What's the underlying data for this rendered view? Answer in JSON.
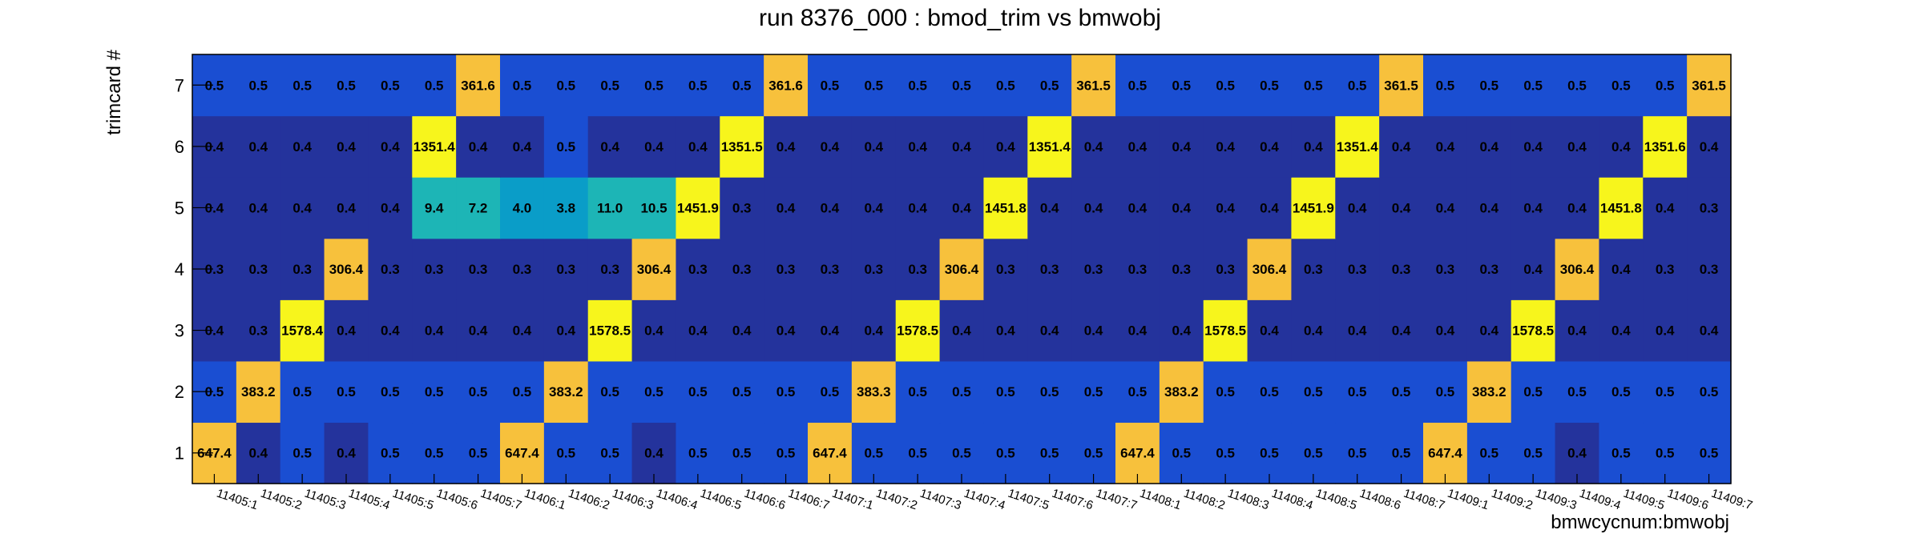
{
  "chart_data": {
    "type": "heatmap",
    "title": "run 8376_000 : bmod_trim vs bmwobj",
    "xlabel": "bmwcycnum:bmwobj",
    "ylabel": "trimcard #",
    "x_categories": [
      "11405:1",
      "11405:2",
      "11405:3",
      "11405:4",
      "11405:5",
      "11405:6",
      "11405:7",
      "11406:1",
      "11406:2",
      "11406:3",
      "11406:4",
      "11406:5",
      "11406:6",
      "11406:7",
      "11407:1",
      "11407:2",
      "11407:3",
      "11407:4",
      "11407:5",
      "11407:6",
      "11407:7",
      "11408:1",
      "11408:2",
      "11408:3",
      "11408:4",
      "11408:5",
      "11408:6",
      "11408:7",
      "11409:1",
      "11409:2",
      "11409:3",
      "11409:4",
      "11409:5",
      "11409:6",
      "11409:7"
    ],
    "y_categories": [
      "1",
      "2",
      "3",
      "4",
      "5",
      "6",
      "7"
    ],
    "values": [
      [
        647.4,
        0.4,
        0.5,
        0.4,
        0.5,
        0.5,
        0.5,
        647.4,
        0.5,
        0.5,
        0.4,
        0.5,
        0.5,
        0.5,
        647.4,
        0.5,
        0.5,
        0.5,
        0.5,
        0.5,
        0.5,
        647.4,
        0.5,
        0.5,
        0.5,
        0.5,
        0.5,
        0.5,
        647.4,
        0.5,
        0.5,
        0.4,
        0.5,
        0.5,
        0.5
      ],
      [
        0.5,
        383.2,
        0.5,
        0.5,
        0.5,
        0.5,
        0.5,
        0.5,
        383.2,
        0.5,
        0.5,
        0.5,
        0.5,
        0.5,
        0.5,
        383.3,
        0.5,
        0.5,
        0.5,
        0.5,
        0.5,
        0.5,
        383.2,
        0.5,
        0.5,
        0.5,
        0.5,
        0.5,
        0.5,
        383.2,
        0.5,
        0.5,
        0.5,
        0.5,
        0.5
      ],
      [
        0.4,
        0.3,
        1578.4,
        0.4,
        0.4,
        0.4,
        0.4,
        0.4,
        0.4,
        1578.5,
        0.4,
        0.4,
        0.4,
        0.4,
        0.4,
        0.4,
        1578.5,
        0.4,
        0.4,
        0.4,
        0.4,
        0.4,
        0.4,
        1578.5,
        0.4,
        0.4,
        0.4,
        0.4,
        0.4,
        0.4,
        1578.5,
        0.4,
        0.4,
        0.4,
        0.4
      ],
      [
        0.3,
        0.3,
        0.3,
        306.4,
        0.3,
        0.3,
        0.3,
        0.3,
        0.3,
        0.3,
        306.4,
        0.3,
        0.3,
        0.3,
        0.3,
        0.3,
        0.3,
        306.4,
        0.3,
        0.3,
        0.3,
        0.3,
        0.3,
        0.3,
        306.4,
        0.3,
        0.3,
        0.3,
        0.3,
        0.3,
        0.4,
        306.4,
        0.4,
        0.3,
        0.3
      ],
      [
        0.4,
        0.4,
        0.4,
        0.4,
        0.4,
        9.4,
        7.2,
        4.0,
        3.8,
        11.0,
        10.5,
        1451.9,
        0.3,
        0.4,
        0.4,
        0.4,
        0.4,
        0.4,
        1451.8,
        0.4,
        0.4,
        0.4,
        0.4,
        0.4,
        0.4,
        1451.9,
        0.4,
        0.4,
        0.4,
        0.4,
        0.4,
        0.4,
        1451.8,
        0.4,
        0.3
      ],
      [
        0.4,
        0.4,
        0.4,
        0.4,
        0.4,
        1351.4,
        0.4,
        0.4,
        0.5,
        0.4,
        0.4,
        0.4,
        1351.5,
        0.4,
        0.4,
        0.4,
        0.4,
        0.4,
        0.4,
        1351.4,
        0.4,
        0.4,
        0.4,
        0.4,
        0.4,
        0.4,
        1351.4,
        0.4,
        0.4,
        0.4,
        0.4,
        0.4,
        0.4,
        1351.6,
        0.4
      ],
      [
        0.5,
        0.5,
        0.5,
        0.5,
        0.5,
        0.5,
        361.6,
        0.5,
        0.5,
        0.5,
        0.5,
        0.5,
        0.5,
        361.6,
        0.5,
        0.5,
        0.5,
        0.5,
        0.5,
        0.5,
        361.5,
        0.5,
        0.5,
        0.5,
        0.5,
        0.5,
        0.5,
        361.5,
        0.5,
        0.5,
        0.5,
        0.5,
        0.5,
        0.5,
        361.5
      ]
    ],
    "palette": [
      "#24339c",
      "#1a4ed2",
      "#0a9dc8",
      "#1db5b6",
      "#f7c13c",
      "#f7f51c"
    ],
    "grid": false,
    "legend": "none"
  }
}
